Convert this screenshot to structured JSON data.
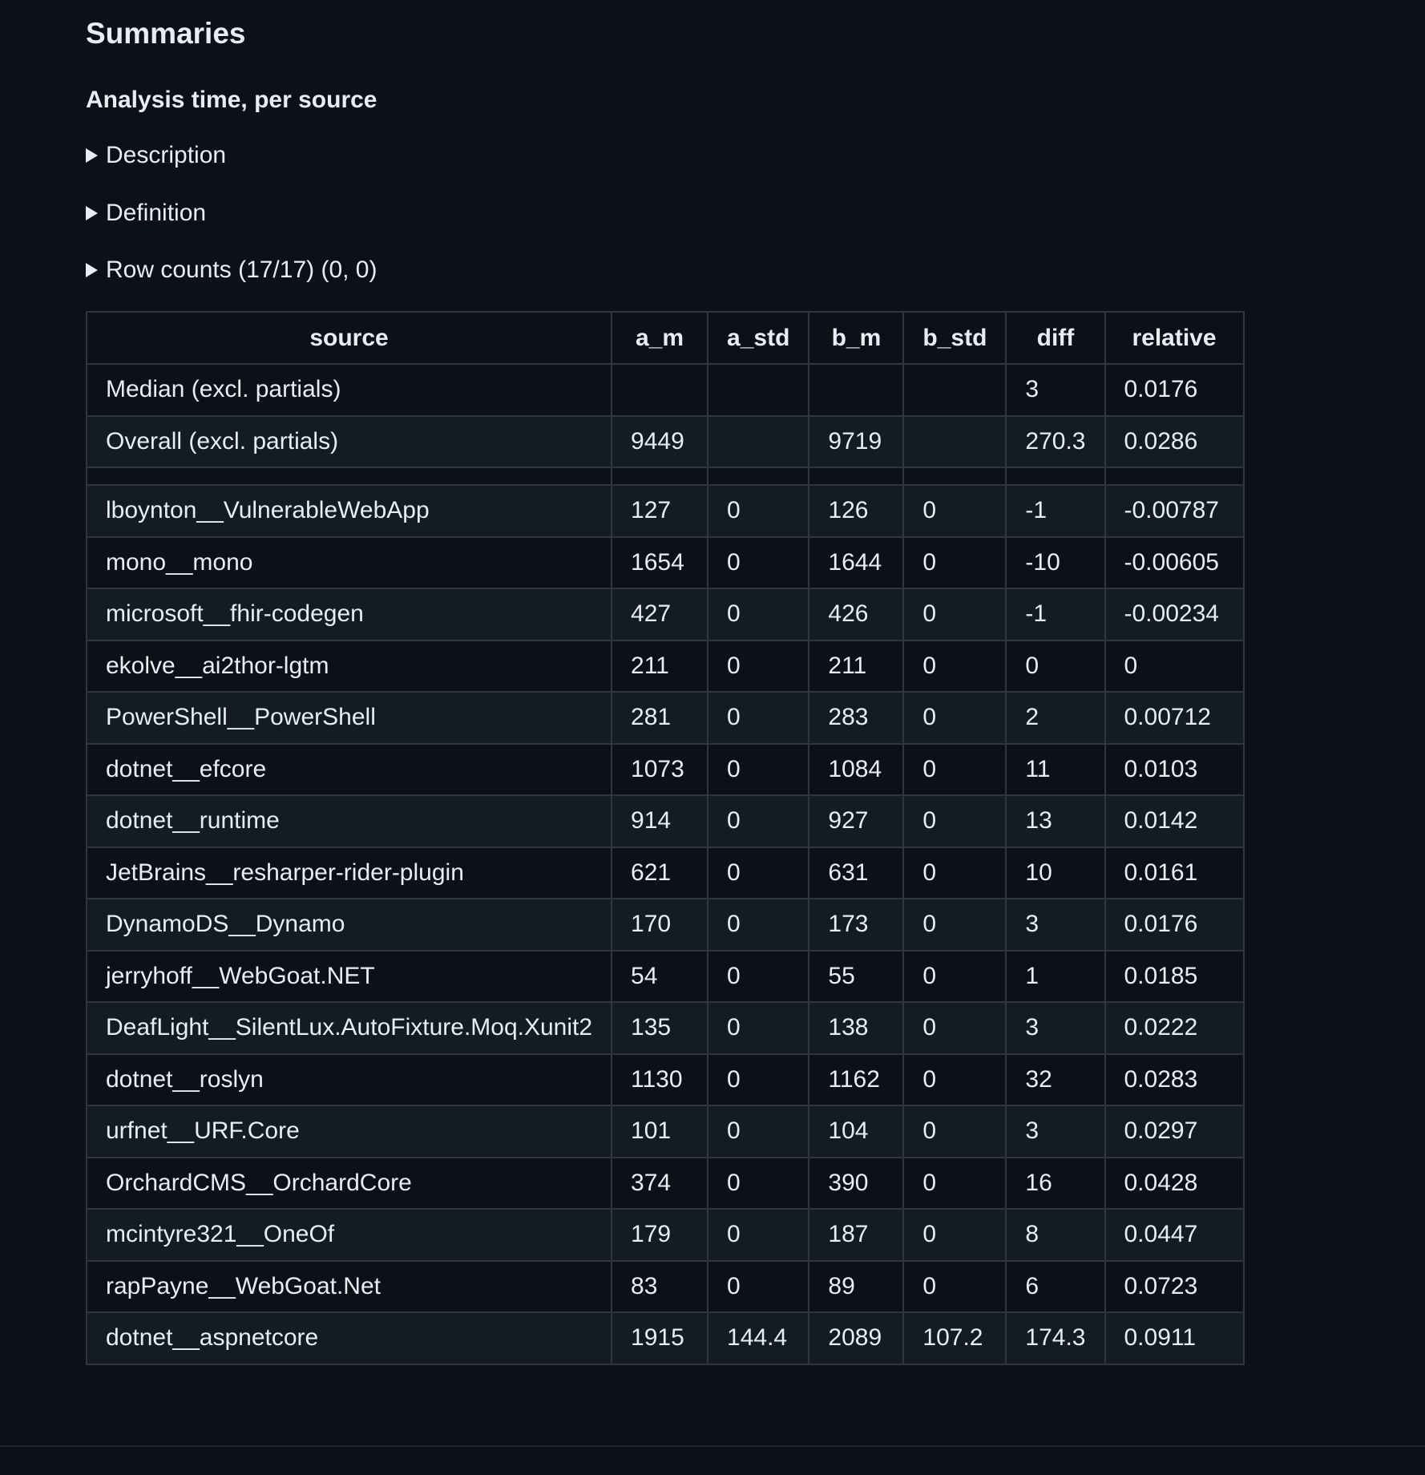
{
  "heading": "Summaries",
  "subheading": "Analysis time, per source",
  "sections": {
    "description": "Description",
    "definition": "Definition",
    "row_counts": "Row counts (17/17) (0, 0)"
  },
  "table": {
    "headers": [
      "source",
      "a_m",
      "a_std",
      "b_m",
      "b_std",
      "diff",
      "relative"
    ],
    "summary_rows": [
      [
        "Median (excl. partials)",
        "",
        "",
        "",
        "",
        "3",
        "0.0176"
      ],
      [
        "Overall (excl. partials)",
        "9449",
        "",
        "9719",
        "",
        "270.3",
        "0.0286"
      ]
    ],
    "rows": [
      [
        "lboynton__VulnerableWebApp",
        "127",
        "0",
        "126",
        "0",
        "-1",
        "-0.00787"
      ],
      [
        "mono__mono",
        "1654",
        "0",
        "1644",
        "0",
        "-10",
        "-0.00605"
      ],
      [
        "microsoft__fhir-codegen",
        "427",
        "0",
        "426",
        "0",
        "-1",
        "-0.00234"
      ],
      [
        "ekolve__ai2thor-lgtm",
        "211",
        "0",
        "211",
        "0",
        "0",
        "0"
      ],
      [
        "PowerShell__PowerShell",
        "281",
        "0",
        "283",
        "0",
        "2",
        "0.00712"
      ],
      [
        "dotnet__efcore",
        "1073",
        "0",
        "1084",
        "0",
        "11",
        "0.0103"
      ],
      [
        "dotnet__runtime",
        "914",
        "0",
        "927",
        "0",
        "13",
        "0.0142"
      ],
      [
        "JetBrains__resharper-rider-plugin",
        "621",
        "0",
        "631",
        "0",
        "10",
        "0.0161"
      ],
      [
        "DynamoDS__Dynamo",
        "170",
        "0",
        "173",
        "0",
        "3",
        "0.0176"
      ],
      [
        "jerryhoff__WebGoat.NET",
        "54",
        "0",
        "55",
        "0",
        "1",
        "0.0185"
      ],
      [
        "DeafLight__SilentLux.AutoFixture.Moq.Xunit2",
        "135",
        "0",
        "138",
        "0",
        "3",
        "0.0222"
      ],
      [
        "dotnet__roslyn",
        "1130",
        "0",
        "1162",
        "0",
        "32",
        "0.0283"
      ],
      [
        "urfnet__URF.Core",
        "101",
        "0",
        "104",
        "0",
        "3",
        "0.0297"
      ],
      [
        "OrchardCMS__OrchardCore",
        "374",
        "0",
        "390",
        "0",
        "16",
        "0.0428"
      ],
      [
        "mcintyre321__OneOf",
        "179",
        "0",
        "187",
        "0",
        "8",
        "0.0447"
      ],
      [
        "rapPayne__WebGoat.Net",
        "83",
        "0",
        "89",
        "0",
        "6",
        "0.0723"
      ],
      [
        "dotnet__aspnetcore",
        "1915",
        "144.4",
        "2089",
        "107.2",
        "174.3",
        "0.0911"
      ]
    ]
  }
}
